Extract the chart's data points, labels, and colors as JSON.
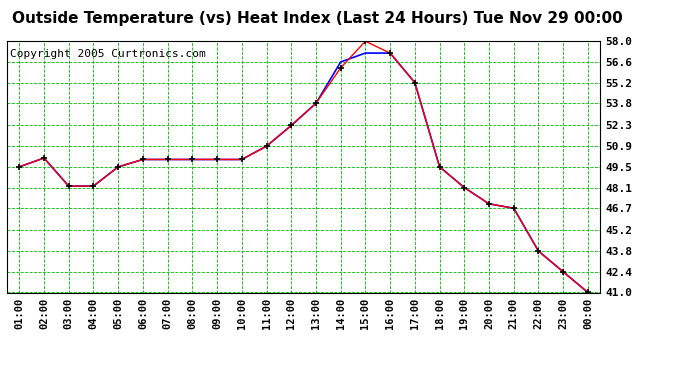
{
  "title": "Outside Temperature (vs) Heat Index (Last 24 Hours) Tue Nov 29 00:00",
  "copyright": "Copyright 2005 Curtronics.com",
  "x_labels": [
    "01:00",
    "02:00",
    "03:00",
    "04:00",
    "05:00",
    "06:00",
    "07:00",
    "08:00",
    "09:00",
    "10:00",
    "11:00",
    "12:00",
    "13:00",
    "14:00",
    "15:00",
    "16:00",
    "17:00",
    "18:00",
    "19:00",
    "20:00",
    "21:00",
    "22:00",
    "23:00",
    "00:00"
  ],
  "temp_values": [
    49.5,
    50.1,
    48.2,
    48.2,
    49.5,
    50.0,
    50.0,
    50.0,
    50.0,
    50.0,
    50.9,
    52.3,
    53.8,
    56.2,
    58.0,
    57.2,
    55.2,
    49.5,
    48.1,
    47.0,
    46.7,
    43.8,
    42.4,
    41.0
  ],
  "heat_index_values": [
    49.5,
    50.1,
    48.2,
    48.2,
    49.5,
    50.0,
    50.0,
    50.0,
    50.0,
    50.0,
    50.9,
    52.3,
    53.8,
    56.6,
    57.2,
    57.2,
    55.2,
    49.5,
    48.1,
    47.0,
    46.7,
    43.8,
    42.4,
    41.0
  ],
  "y_min": 41.0,
  "y_max": 58.0,
  "y_ticks": [
    41.0,
    42.4,
    43.8,
    45.2,
    46.7,
    48.1,
    49.5,
    50.9,
    52.3,
    53.8,
    55.2,
    56.6,
    58.0
  ],
  "temp_color": "#FF0000",
  "heat_index_color": "#0000FF",
  "marker_color": "#000000",
  "bg_color": "#FFFFFF",
  "plot_bg_color": "#FFFFFF",
  "grid_color": "#00BB00",
  "title_fontsize": 11,
  "copyright_fontsize": 8
}
